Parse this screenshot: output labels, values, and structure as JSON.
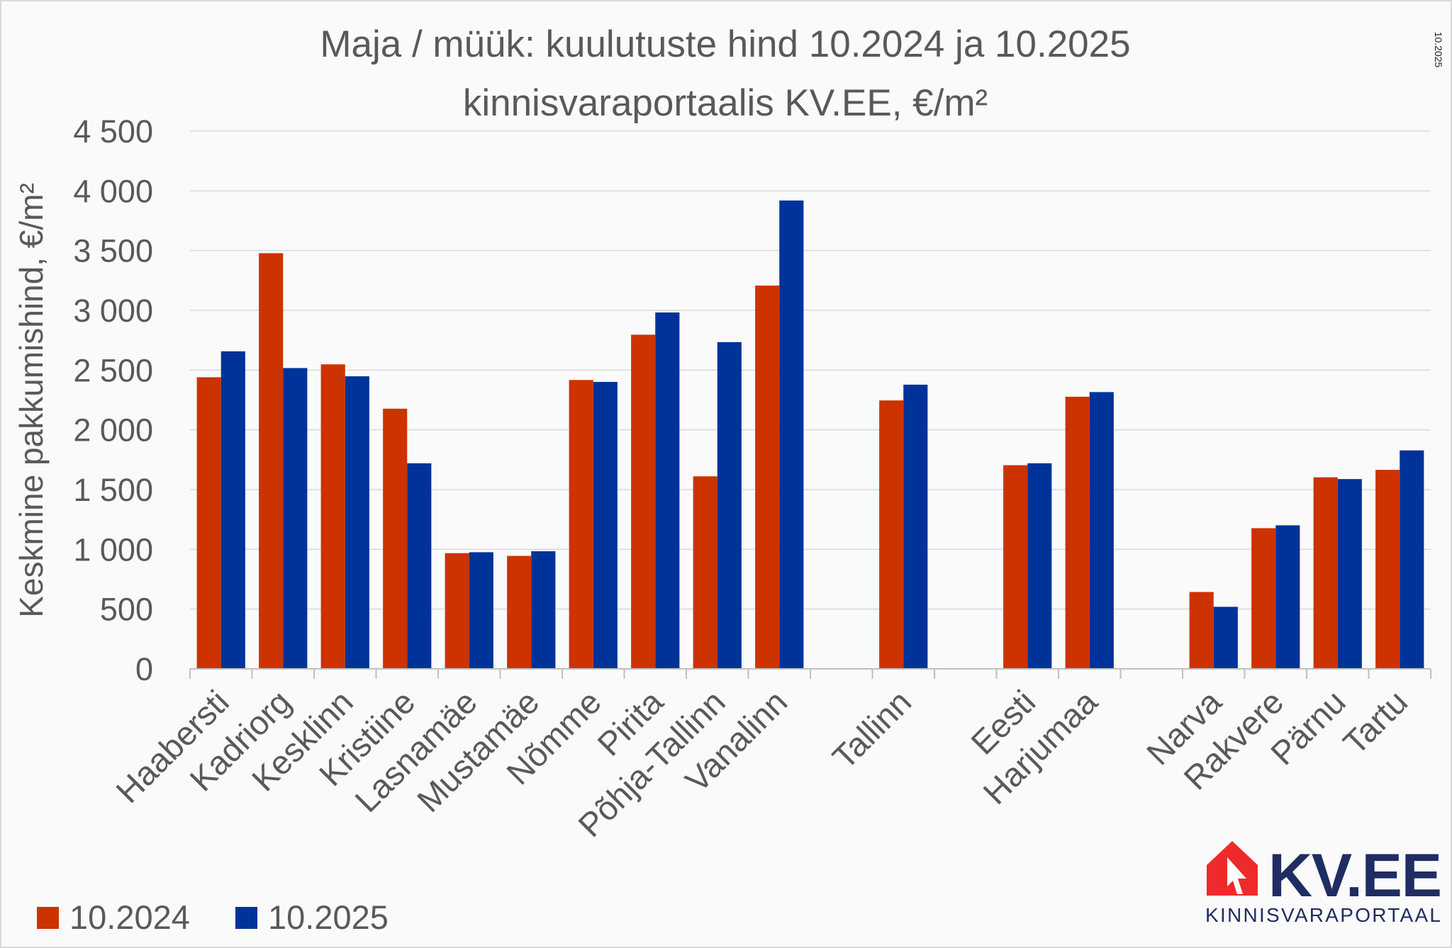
{
  "chart_data": {
    "type": "bar",
    "title": "Maja / müük: kuulutuste hind 10.2024 ja 10.2025",
    "subtitle": "kinnisvaraportaalis KV.EE, €/m²",
    "xlabel": "",
    "ylabel": "Keskmine pakkumishind, €/m²",
    "ylim": [
      0,
      4500
    ],
    "yticks": [
      0,
      500,
      1000,
      1500,
      2000,
      2500,
      3000,
      3500,
      4000,
      4500
    ],
    "ytick_labels": [
      "0",
      "500",
      "1 000",
      "1 500",
      "2 000",
      "2 500",
      "3 000",
      "3 500",
      "4 000",
      "4 500"
    ],
    "grid": true,
    "legend_position": "bottom-left",
    "categories": [
      "Haabersti",
      "Kadriorg",
      "Kesklinn",
      "Kristiine",
      "Lasnamäe",
      "Mustamäe",
      "Nõmme",
      "Pirita",
      "Põhja-Tallinn",
      "Vanalinn",
      "",
      "Tallinn",
      "",
      "Eesti",
      "Harjumaa",
      "",
      "Narva",
      "Rakvere",
      "Pärnu",
      "Tartu"
    ],
    "series": [
      {
        "name": "10.2024",
        "color": "#cc3300",
        "values": [
          2440,
          3478,
          2548,
          2177,
          968,
          945,
          2417,
          2796,
          1611,
          3207,
          null,
          2246,
          null,
          1704,
          2277,
          null,
          643,
          1177,
          1603,
          1665
        ]
      },
      {
        "name": "10.2025",
        "color": "#003399",
        "values": [
          2657,
          2517,
          2448,
          1720,
          976,
          984,
          2401,
          2982,
          2734,
          3919,
          null,
          2378,
          null,
          1720,
          2316,
          null,
          519,
          1201,
          1588,
          1828
        ]
      }
    ]
  },
  "date_stamp": "10.2025",
  "logo": {
    "text": "KV.EE",
    "tagline": "KINNISVARAPORTAAL",
    "red": "#ee2a2a",
    "navy": "#1f2d63"
  }
}
